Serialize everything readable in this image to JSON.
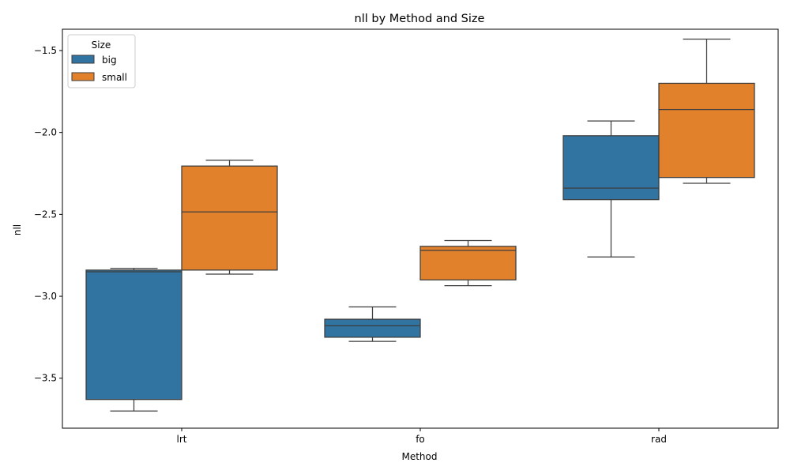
{
  "chart_data": {
    "type": "box",
    "title": "nll by Method and Size",
    "xlabel": "Method",
    "ylabel": "nll",
    "categories": [
      "lrt",
      "fo",
      "rad"
    ],
    "ylim": [
      -3.805,
      -1.37
    ],
    "yticks": [
      -3.5,
      -3.0,
      -2.5,
      -2.0,
      -1.5
    ],
    "ytick_labels": [
      "−3.5",
      "−3.0",
      "−2.5",
      "−2.0",
      "−1.5"
    ],
    "grid": false,
    "legend": {
      "title": "Size",
      "position": "top-left",
      "entries": [
        {
          "label": "big",
          "color": "#3274a1"
        },
        {
          "label": "small",
          "color": "#e1812c"
        }
      ]
    },
    "series": [
      {
        "name": "big",
        "color": "#3274a1",
        "boxes": [
          {
            "category": "lrt",
            "whisker_low": -3.7,
            "q1": -3.63,
            "median": -2.85,
            "q3": -2.84,
            "whisker_high": -2.83
          },
          {
            "category": "fo",
            "whisker_low": -3.275,
            "q1": -3.25,
            "median": -3.18,
            "q3": -3.14,
            "whisker_high": -3.065
          },
          {
            "category": "rad",
            "whisker_low": -2.76,
            "q1": -2.41,
            "median": -2.34,
            "q3": -2.02,
            "whisker_high": -1.93
          }
        ]
      },
      {
        "name": "small",
        "color": "#e1812c",
        "boxes": [
          {
            "category": "lrt",
            "whisker_low": -2.865,
            "q1": -2.84,
            "median": -2.485,
            "q3": -2.205,
            "whisker_high": -2.17
          },
          {
            "category": "fo",
            "whisker_low": -2.935,
            "q1": -2.9,
            "median": -2.72,
            "q3": -2.695,
            "whisker_high": -2.66
          },
          {
            "category": "rad",
            "whisker_low": -2.31,
            "q1": -2.275,
            "median": -1.86,
            "q3": -1.7,
            "whisker_high": -1.43
          }
        ]
      }
    ]
  }
}
